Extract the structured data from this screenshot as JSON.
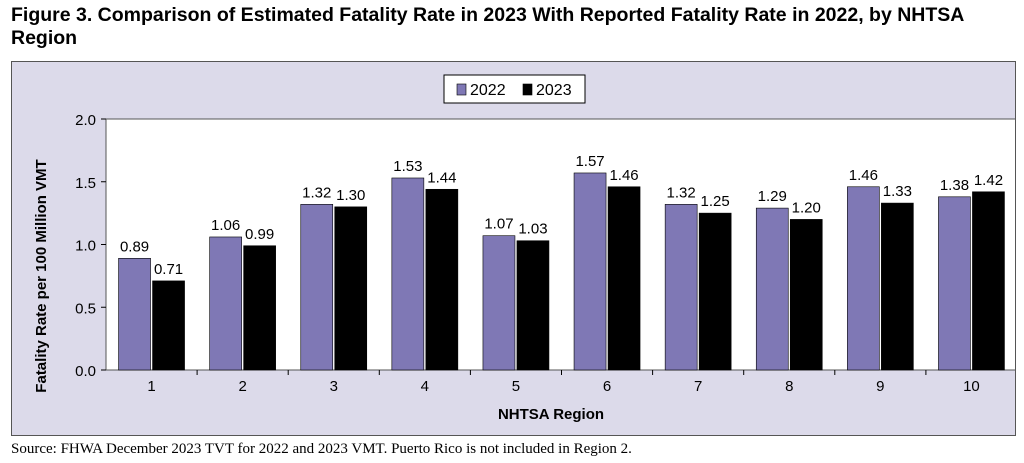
{
  "figure": {
    "title": "Figure 3. Comparison of Estimated Fatality Rate in 2023 With Reported Fatality Rate in 2022, by NHTSA Region",
    "source": "Source: FHWA December 2023 TVT for 2022 and 2023 VMT. Puerto Rico is not included in Region 2."
  },
  "chart_data": {
    "type": "bar",
    "title": "",
    "xlabel": "NHTSA Region",
    "ylabel": "Fatality Rate per 100 Million VMT",
    "ylim": [
      0,
      2.0
    ],
    "y_ticks": [
      "0.0",
      "0.5",
      "1.0",
      "1.5",
      "2.0"
    ],
    "grid": false,
    "legend_position": "top-center",
    "categories": [
      "1",
      "2",
      "3",
      "4",
      "5",
      "6",
      "7",
      "8",
      "9",
      "10"
    ],
    "series": [
      {
        "name": "2022",
        "color": "#7f78b5",
        "values": [
          0.89,
          1.06,
          1.32,
          1.53,
          1.07,
          1.57,
          1.32,
          1.29,
          1.46,
          1.38
        ],
        "labels": [
          "0.89",
          "1.06",
          "1.32",
          "1.53",
          "1.07",
          "1.57",
          "1.32",
          "1.29",
          "1.46",
          "1.38"
        ]
      },
      {
        "name": "2023",
        "color": "#000000",
        "values": [
          0.71,
          0.99,
          1.3,
          1.44,
          1.03,
          1.46,
          1.25,
          1.2,
          1.33,
          1.42
        ],
        "labels": [
          "0.71",
          "0.99",
          "1.30",
          "1.44",
          "1.03",
          "1.46",
          "1.25",
          "1.20",
          "1.33",
          "1.42"
        ]
      }
    ]
  }
}
